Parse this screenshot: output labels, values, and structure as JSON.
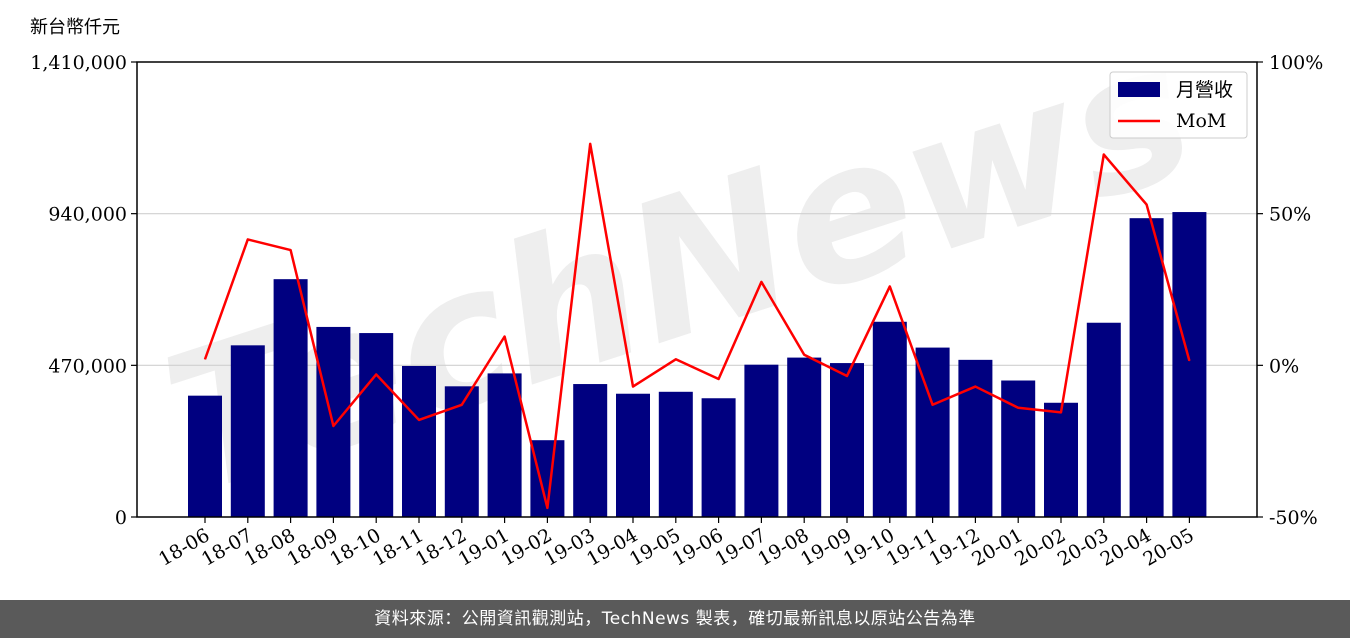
{
  "chart_data": {
    "type": "bar",
    "y_unit_label": "新台幣仟元",
    "categories": [
      "18-06",
      "18-07",
      "18-08",
      "18-09",
      "18-10",
      "18-11",
      "18-12",
      "19-01",
      "19-02",
      "19-03",
      "19-04",
      "19-05",
      "19-06",
      "19-07",
      "19-08",
      "19-09",
      "19-10",
      "19-11",
      "19-12",
      "20-01",
      "20-02",
      "20-03",
      "20-04",
      "20-05"
    ],
    "series": [
      {
        "name": "月營收",
        "type": "bar",
        "axis": "left",
        "color": "#000080",
        "values": [
          376000,
          532000,
          737000,
          589000,
          570000,
          468000,
          405000,
          445000,
          238000,
          412000,
          382000,
          388000,
          368000,
          472000,
          494000,
          477000,
          605000,
          525000,
          487000,
          423000,
          354000,
          602000,
          926000,
          945000
        ]
      },
      {
        "name": "MoM",
        "type": "line",
        "axis": "right",
        "color": "#ff0000",
        "values": [
          2,
          41.5,
          38,
          -20,
          -3,
          -18,
          -13,
          9.5,
          -47,
          73,
          -7,
          2,
          -4.5,
          27.5,
          3.5,
          -3.5,
          26,
          -13,
          -7,
          -14,
          -15.5,
          69.5,
          53,
          1.5
        ]
      }
    ],
    "y_left": {
      "min": 0,
      "max": 1410000,
      "ticks": [
        "0",
        "470,000",
        "940,000",
        "1,410,000"
      ]
    },
    "y_right": {
      "min": -50,
      "max": 100,
      "ticks": [
        "-50%",
        "0%",
        "50%",
        "100%"
      ]
    },
    "grid": true,
    "legend": "top-right"
  },
  "watermark": "TechNews",
  "footer": {
    "source": "資料來源：公開資訊觀測站，TechNews 製表，確切最新訊息以原站公告為準"
  }
}
